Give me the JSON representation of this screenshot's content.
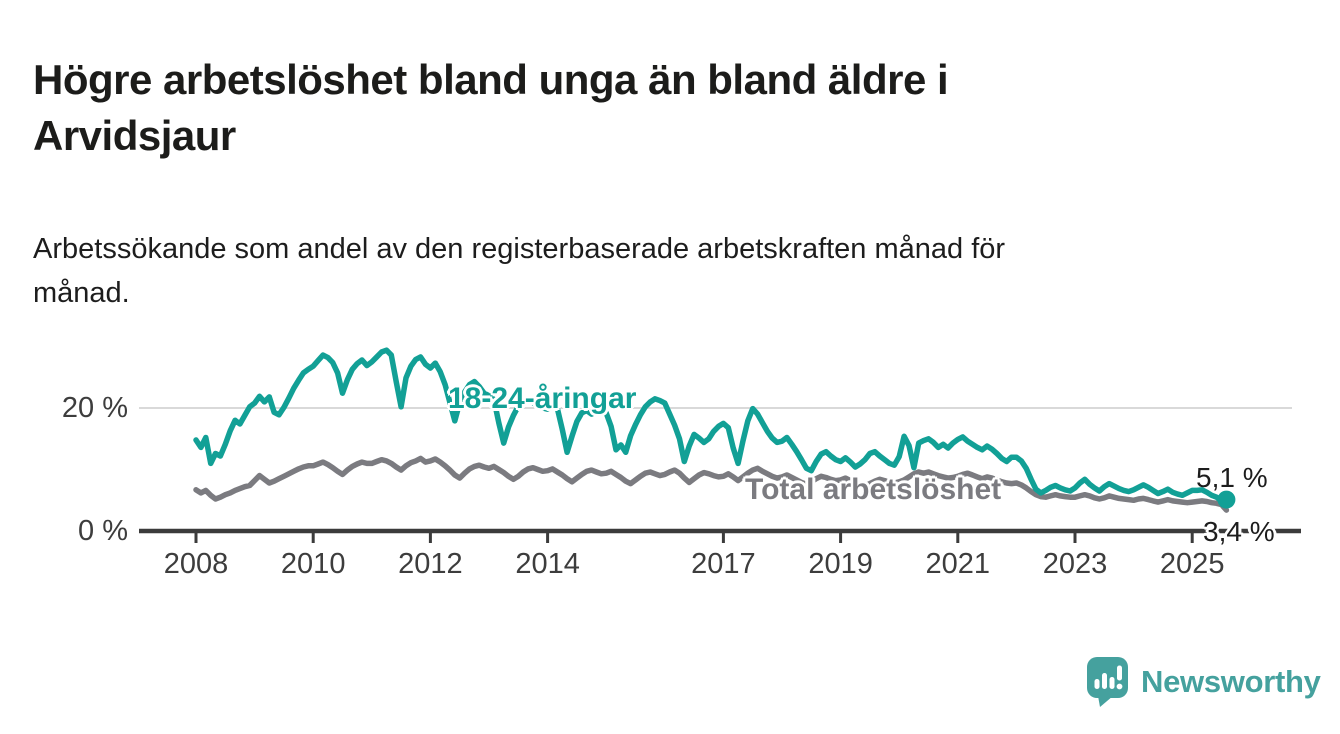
{
  "header": {
    "title": "Högre arbetslöshet bland unga än bland äldre i Arvidsjaur",
    "subtitle": "Arbetssökande som andel av den registerbaserade arbetskraften månad för månad."
  },
  "branding": {
    "logo_text": "Newsworthy",
    "logo_color": "#45a19e"
  },
  "chart_data": {
    "type": "line",
    "unit": "%",
    "x_unit": "month",
    "x_range": {
      "start": "2008-01",
      "end": "2025-08"
    },
    "x_tick_labels": [
      "2008",
      "2010",
      "2012",
      "2014",
      "2017",
      "2019",
      "2021",
      "2023",
      "2025"
    ],
    "y_ticks": [
      {
        "value": 0,
        "label": "0 %"
      },
      {
        "value": 20,
        "label": "20 %"
      }
    ],
    "ylim": [
      0,
      31
    ],
    "grid": "single horizontal gridline at 20 %",
    "legend_position": "inline annotations on lines",
    "axis_color": "#3b3b3b",
    "gridline_color": "#d9d9d9",
    "series": [
      {
        "name": "18-24-åringar",
        "color": "#12a096",
        "end_label": "5,1 %",
        "last_value": 5.1,
        "values": [
          14.8,
          13.6,
          15.2,
          11.0,
          12.6,
          12.2,
          14.1,
          16.3,
          18.0,
          17.4,
          18.8,
          20.2,
          20.8,
          21.9,
          21.0,
          21.8,
          19.3,
          18.9,
          20.1,
          21.6,
          23.2,
          24.5,
          25.7,
          26.3,
          26.8,
          27.7,
          28.6,
          28.2,
          27.4,
          25.7,
          22.4,
          24.6,
          26.3,
          27.2,
          27.8,
          26.9,
          27.5,
          28.3,
          29.1,
          29.4,
          28.6,
          24.3,
          20.2,
          24.9,
          26.8,
          27.9,
          28.3,
          27.1,
          26.5,
          27.3,
          25.9,
          23.8,
          20.9,
          17.9,
          20.9,
          22.6,
          23.8,
          24.3,
          23.5,
          22.4,
          22.0,
          21.4,
          17.6,
          14.3,
          16.9,
          18.8,
          20.3,
          21.0,
          21.5,
          20.9,
          20.3,
          20.0,
          19.8,
          20.6,
          19.9,
          16.5,
          12.8,
          15.4,
          17.8,
          19.2,
          19.6,
          19.0,
          19.4,
          19.7,
          19.2,
          17.0,
          13.2,
          14.0,
          12.8,
          15.5,
          17.3,
          18.9,
          20.2,
          21.0,
          21.5,
          21.2,
          20.8,
          19.0,
          17.2,
          15.0,
          11.3,
          13.8,
          15.7,
          15.1,
          14.4,
          15.0,
          16.2,
          17.0,
          17.5,
          16.8,
          13.5,
          11.0,
          14.6,
          17.9,
          19.9,
          19.0,
          17.6,
          16.2,
          15.1,
          14.4,
          14.6,
          15.2,
          14.1,
          12.9,
          11.6,
          10.2,
          9.8,
          11.3,
          12.5,
          12.9,
          12.2,
          11.6,
          11.3,
          11.9,
          11.2,
          10.4,
          10.9,
          11.6,
          12.6,
          12.9,
          12.2,
          11.6,
          11.0,
          10.7,
          12.1,
          15.4,
          13.9,
          10.3,
          14.3,
          14.7,
          15.0,
          14.4,
          13.6,
          14.1,
          13.5,
          14.3,
          14.9,
          15.3,
          14.6,
          14.1,
          13.6,
          13.2,
          13.8,
          13.3,
          12.6,
          11.8,
          11.3,
          12.0,
          12.0,
          11.4,
          10.2,
          8.4,
          6.8,
          6.2,
          6.6,
          7.1,
          7.4,
          7.0,
          6.7,
          6.5,
          7.0,
          7.8,
          8.4,
          7.6,
          7.0,
          6.5,
          7.2,
          7.7,
          7.3,
          6.9,
          6.6,
          6.4,
          6.7,
          7.1,
          7.5,
          7.1,
          6.6,
          6.1,
          6.4,
          6.8,
          6.3,
          6.0,
          5.8,
          6.2,
          6.6,
          6.6,
          6.7,
          6.3,
          5.8,
          5.5,
          4.9,
          5.1
        ]
      },
      {
        "name": "Total arbetslöshet",
        "color": "#7b7b80",
        "end_label": "3,4 %",
        "last_value": 3.4,
        "values": [
          6.7,
          6.2,
          6.6,
          5.8,
          5.2,
          5.5,
          5.9,
          6.2,
          6.6,
          6.9,
          7.2,
          7.4,
          8.2,
          9.0,
          8.4,
          7.8,
          8.1,
          8.5,
          8.9,
          9.3,
          9.7,
          10.1,
          10.4,
          10.6,
          10.6,
          10.9,
          11.2,
          10.8,
          10.3,
          9.7,
          9.2,
          9.9,
          10.5,
          10.9,
          11.2,
          11.0,
          11.0,
          11.3,
          11.6,
          11.4,
          11.0,
          10.4,
          9.9,
          10.6,
          11.1,
          11.4,
          11.8,
          11.2,
          11.4,
          11.7,
          11.2,
          10.6,
          9.9,
          9.1,
          8.6,
          9.4,
          10.1,
          10.5,
          10.7,
          10.4,
          10.2,
          10.5,
          10.0,
          9.5,
          8.9,
          8.4,
          8.9,
          9.6,
          10.1,
          10.3,
          10.0,
          9.7,
          9.8,
          10.1,
          9.6,
          9.1,
          8.5,
          8.0,
          8.6,
          9.2,
          9.7,
          9.9,
          9.6,
          9.3,
          9.4,
          9.7,
          9.2,
          8.7,
          8.1,
          7.7,
          8.3,
          8.9,
          9.4,
          9.6,
          9.3,
          9.0,
          9.2,
          9.6,
          9.9,
          9.4,
          8.6,
          7.9,
          8.5,
          9.1,
          9.5,
          9.3,
          9.0,
          8.8,
          8.9,
          9.3,
          8.8,
          8.2,
          8.8,
          9.4,
          9.9,
          10.2,
          9.7,
          9.3,
          8.9,
          8.6,
          8.8,
          9.1,
          8.7,
          8.3,
          7.9,
          7.6,
          8.0,
          8.5,
          8.9,
          8.7,
          8.4,
          8.2,
          8.3,
          8.6,
          8.2,
          7.8,
          7.5,
          7.3,
          7.7,
          8.1,
          8.4,
          8.2,
          7.9,
          7.8,
          8.0,
          8.3,
          8.8,
          9.3,
          9.6,
          9.4,
          9.6,
          9.3,
          9.0,
          8.8,
          8.6,
          8.7,
          8.9,
          9.2,
          9.4,
          9.1,
          8.8,
          8.5,
          8.8,
          8.6,
          8.3,
          8.0,
          7.8,
          7.7,
          7.8,
          7.5,
          7.0,
          6.4,
          5.9,
          5.6,
          5.5,
          5.7,
          5.9,
          5.7,
          5.6,
          5.5,
          5.5,
          5.7,
          5.9,
          5.7,
          5.4,
          5.2,
          5.4,
          5.7,
          5.5,
          5.3,
          5.2,
          5.1,
          5.0,
          5.2,
          5.3,
          5.1,
          4.9,
          4.7,
          4.9,
          5.1,
          4.9,
          4.8,
          4.7,
          4.6,
          4.7,
          4.8,
          4.9,
          4.8,
          4.6,
          4.5,
          4.3,
          3.4
        ]
      }
    ]
  }
}
